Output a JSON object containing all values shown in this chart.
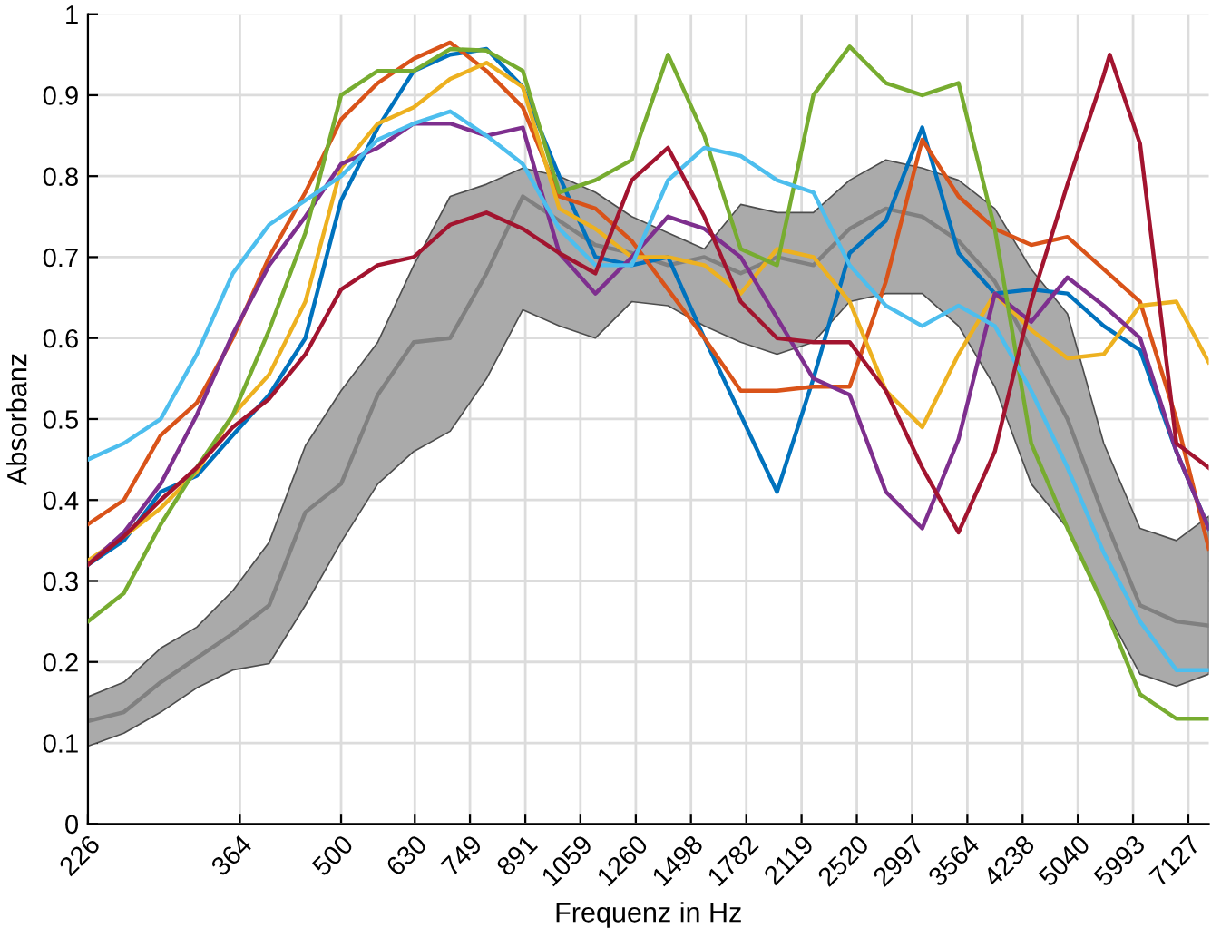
{
  "chart_data": {
    "type": "line",
    "xlabel": "Frequenz in Hz",
    "ylabel": "Absorbanz",
    "log": "x",
    "grid": true,
    "marker": "none",
    "line_style": "solid",
    "x": [
      226,
      253,
      284,
      318,
      356,
      399,
      447,
      500,
      561,
      628,
      704,
      789,
      884,
      991,
      1110,
      1244,
      1394,
      1562,
      1751,
      1962,
      2199,
      2464,
      2761,
      3094,
      3467,
      3885,
      4354,
      4879,
      5467,
      6126,
      6865,
      7600
    ],
    "xlim": [
      226,
      7600
    ],
    "xticks": [
      226,
      364,
      500,
      630,
      749,
      891,
      1059,
      1260,
      1498,
      1782,
      2119,
      2520,
      2997,
      3564,
      4238,
      5040,
      5993,
      7127
    ],
    "ylim": [
      0,
      1
    ],
    "yticks": [
      0,
      0.1,
      0.2,
      0.3,
      0.4,
      0.5,
      0.6,
      0.7,
      0.8,
      0.9,
      1
    ],
    "series": [
      {
        "color": "#808080",
        "values": [
          0.127,
          0.138,
          0.175,
          0.205,
          0.235,
          0.27,
          0.385,
          0.42,
          0.53,
          0.595,
          0.6,
          0.68,
          0.775,
          0.745,
          0.715,
          0.705,
          0.69,
          0.7,
          0.68,
          0.7,
          0.69,
          0.735,
          0.76,
          0.75,
          0.72,
          0.67,
          0.585,
          0.5,
          0.38,
          0.27,
          0.25,
          0.245
        ],
        "lower": [
          0.096,
          0.112,
          0.138,
          0.168,
          0.19,
          0.198,
          0.27,
          0.348,
          0.42,
          0.46,
          0.485,
          0.55,
          0.635,
          0.615,
          0.6,
          0.645,
          0.64,
          0.615,
          0.595,
          0.58,
          0.595,
          0.645,
          0.655,
          0.655,
          0.615,
          0.54,
          0.42,
          0.365,
          0.27,
          0.185,
          0.17,
          0.185
        ],
        "upper": [
          0.157,
          0.175,
          0.217,
          0.243,
          0.288,
          0.348,
          0.467,
          0.535,
          0.595,
          0.69,
          0.775,
          0.79,
          0.81,
          0.8,
          0.78,
          0.75,
          0.73,
          0.71,
          0.765,
          0.755,
          0.755,
          0.795,
          0.82,
          0.81,
          0.795,
          0.76,
          0.685,
          0.63,
          0.47,
          0.365,
          0.35,
          0.38
        ]
      },
      {
        "color": "#0072bd",
        "values": [
          0.32,
          0.35,
          0.41,
          0.43,
          0.48,
          0.53,
          0.6,
          0.77,
          0.86,
          0.93,
          0.95,
          0.957,
          0.91,
          0.8,
          0.7,
          0.69,
          0.7,
          0.6,
          0.505,
          0.41,
          0.55,
          0.705,
          0.745,
          0.86,
          0.705,
          0.655,
          0.66,
          0.655,
          0.615,
          0.585,
          0.46,
          0.365
        ]
      },
      {
        "color": "#d95319",
        "values": [
          0.37,
          0.4,
          0.48,
          0.52,
          0.6,
          0.7,
          0.78,
          0.87,
          0.915,
          0.945,
          0.965,
          0.93,
          0.885,
          0.775,
          0.76,
          0.72,
          0.66,
          0.6,
          0.535,
          0.535,
          0.54,
          0.54,
          0.67,
          0.845,
          0.775,
          0.735,
          0.715,
          0.725,
          0.685,
          0.645,
          0.5,
          0.34
        ]
      },
      {
        "color": "#edb120",
        "values": [
          0.325,
          0.355,
          0.39,
          0.435,
          0.505,
          0.555,
          0.645,
          0.81,
          0.865,
          0.885,
          0.92,
          0.94,
          0.91,
          0.76,
          0.735,
          0.7,
          0.7,
          0.69,
          0.655,
          0.71,
          0.7,
          0.645,
          0.535,
          0.49,
          0.58,
          0.655,
          0.61,
          0.575,
          0.58,
          0.64,
          0.645,
          0.57
        ]
      },
      {
        "color": "#7e2f8e",
        "values": [
          0.32,
          0.36,
          0.42,
          0.505,
          0.605,
          0.69,
          0.75,
          0.815,
          0.835,
          0.865,
          0.865,
          0.85,
          0.86,
          0.705,
          0.655,
          0.7,
          0.75,
          0.735,
          0.7,
          0.625,
          0.55,
          0.53,
          0.41,
          0.365,
          0.475,
          0.655,
          0.62,
          0.675,
          0.64,
          0.6,
          0.46,
          0.365
        ]
      },
      {
        "color": "#77ac30",
        "values": [
          0.25,
          0.285,
          0.37,
          0.44,
          0.505,
          0.61,
          0.73,
          0.9,
          0.93,
          0.93,
          0.957,
          0.955,
          0.93,
          0.78,
          0.795,
          0.82,
          0.95,
          0.85,
          0.71,
          0.69,
          0.9,
          0.96,
          0.915,
          0.9,
          0.915,
          0.735,
          0.47,
          0.365,
          0.27,
          0.16,
          0.13,
          0.13
        ]
      },
      {
        "color": "#4dbeee",
        "values": [
          0.45,
          0.47,
          0.5,
          0.58,
          0.68,
          0.74,
          0.77,
          0.8,
          0.845,
          0.865,
          0.88,
          0.85,
          0.815,
          0.735,
          0.69,
          0.69,
          0.795,
          0.835,
          0.825,
          0.795,
          0.78,
          0.69,
          0.64,
          0.615,
          0.64,
          0.615,
          0.535,
          0.44,
          0.335,
          0.25,
          0.19,
          0.19
        ]
      },
      {
        "color": "#a2142f",
        "x": [
          226,
          253,
          284,
          318,
          356,
          399,
          447,
          500,
          561,
          628,
          704,
          789,
          884,
          991,
          1110,
          1244,
          1394,
          1562,
          1751,
          1962,
          2199,
          2464,
          2761,
          3094,
          3467,
          3885,
          4354,
          4879,
          5467,
          5570,
          6126,
          6865,
          7600
        ],
        "values": [
          0.32,
          0.355,
          0.4,
          0.44,
          0.49,
          0.525,
          0.58,
          0.66,
          0.69,
          0.7,
          0.74,
          0.755,
          0.735,
          0.705,
          0.68,
          0.795,
          0.835,
          0.75,
          0.645,
          0.6,
          0.595,
          0.595,
          0.535,
          0.44,
          0.36,
          0.46,
          0.645,
          0.79,
          0.925,
          0.95,
          0.84,
          0.47,
          0.44
        ]
      }
    ]
  }
}
